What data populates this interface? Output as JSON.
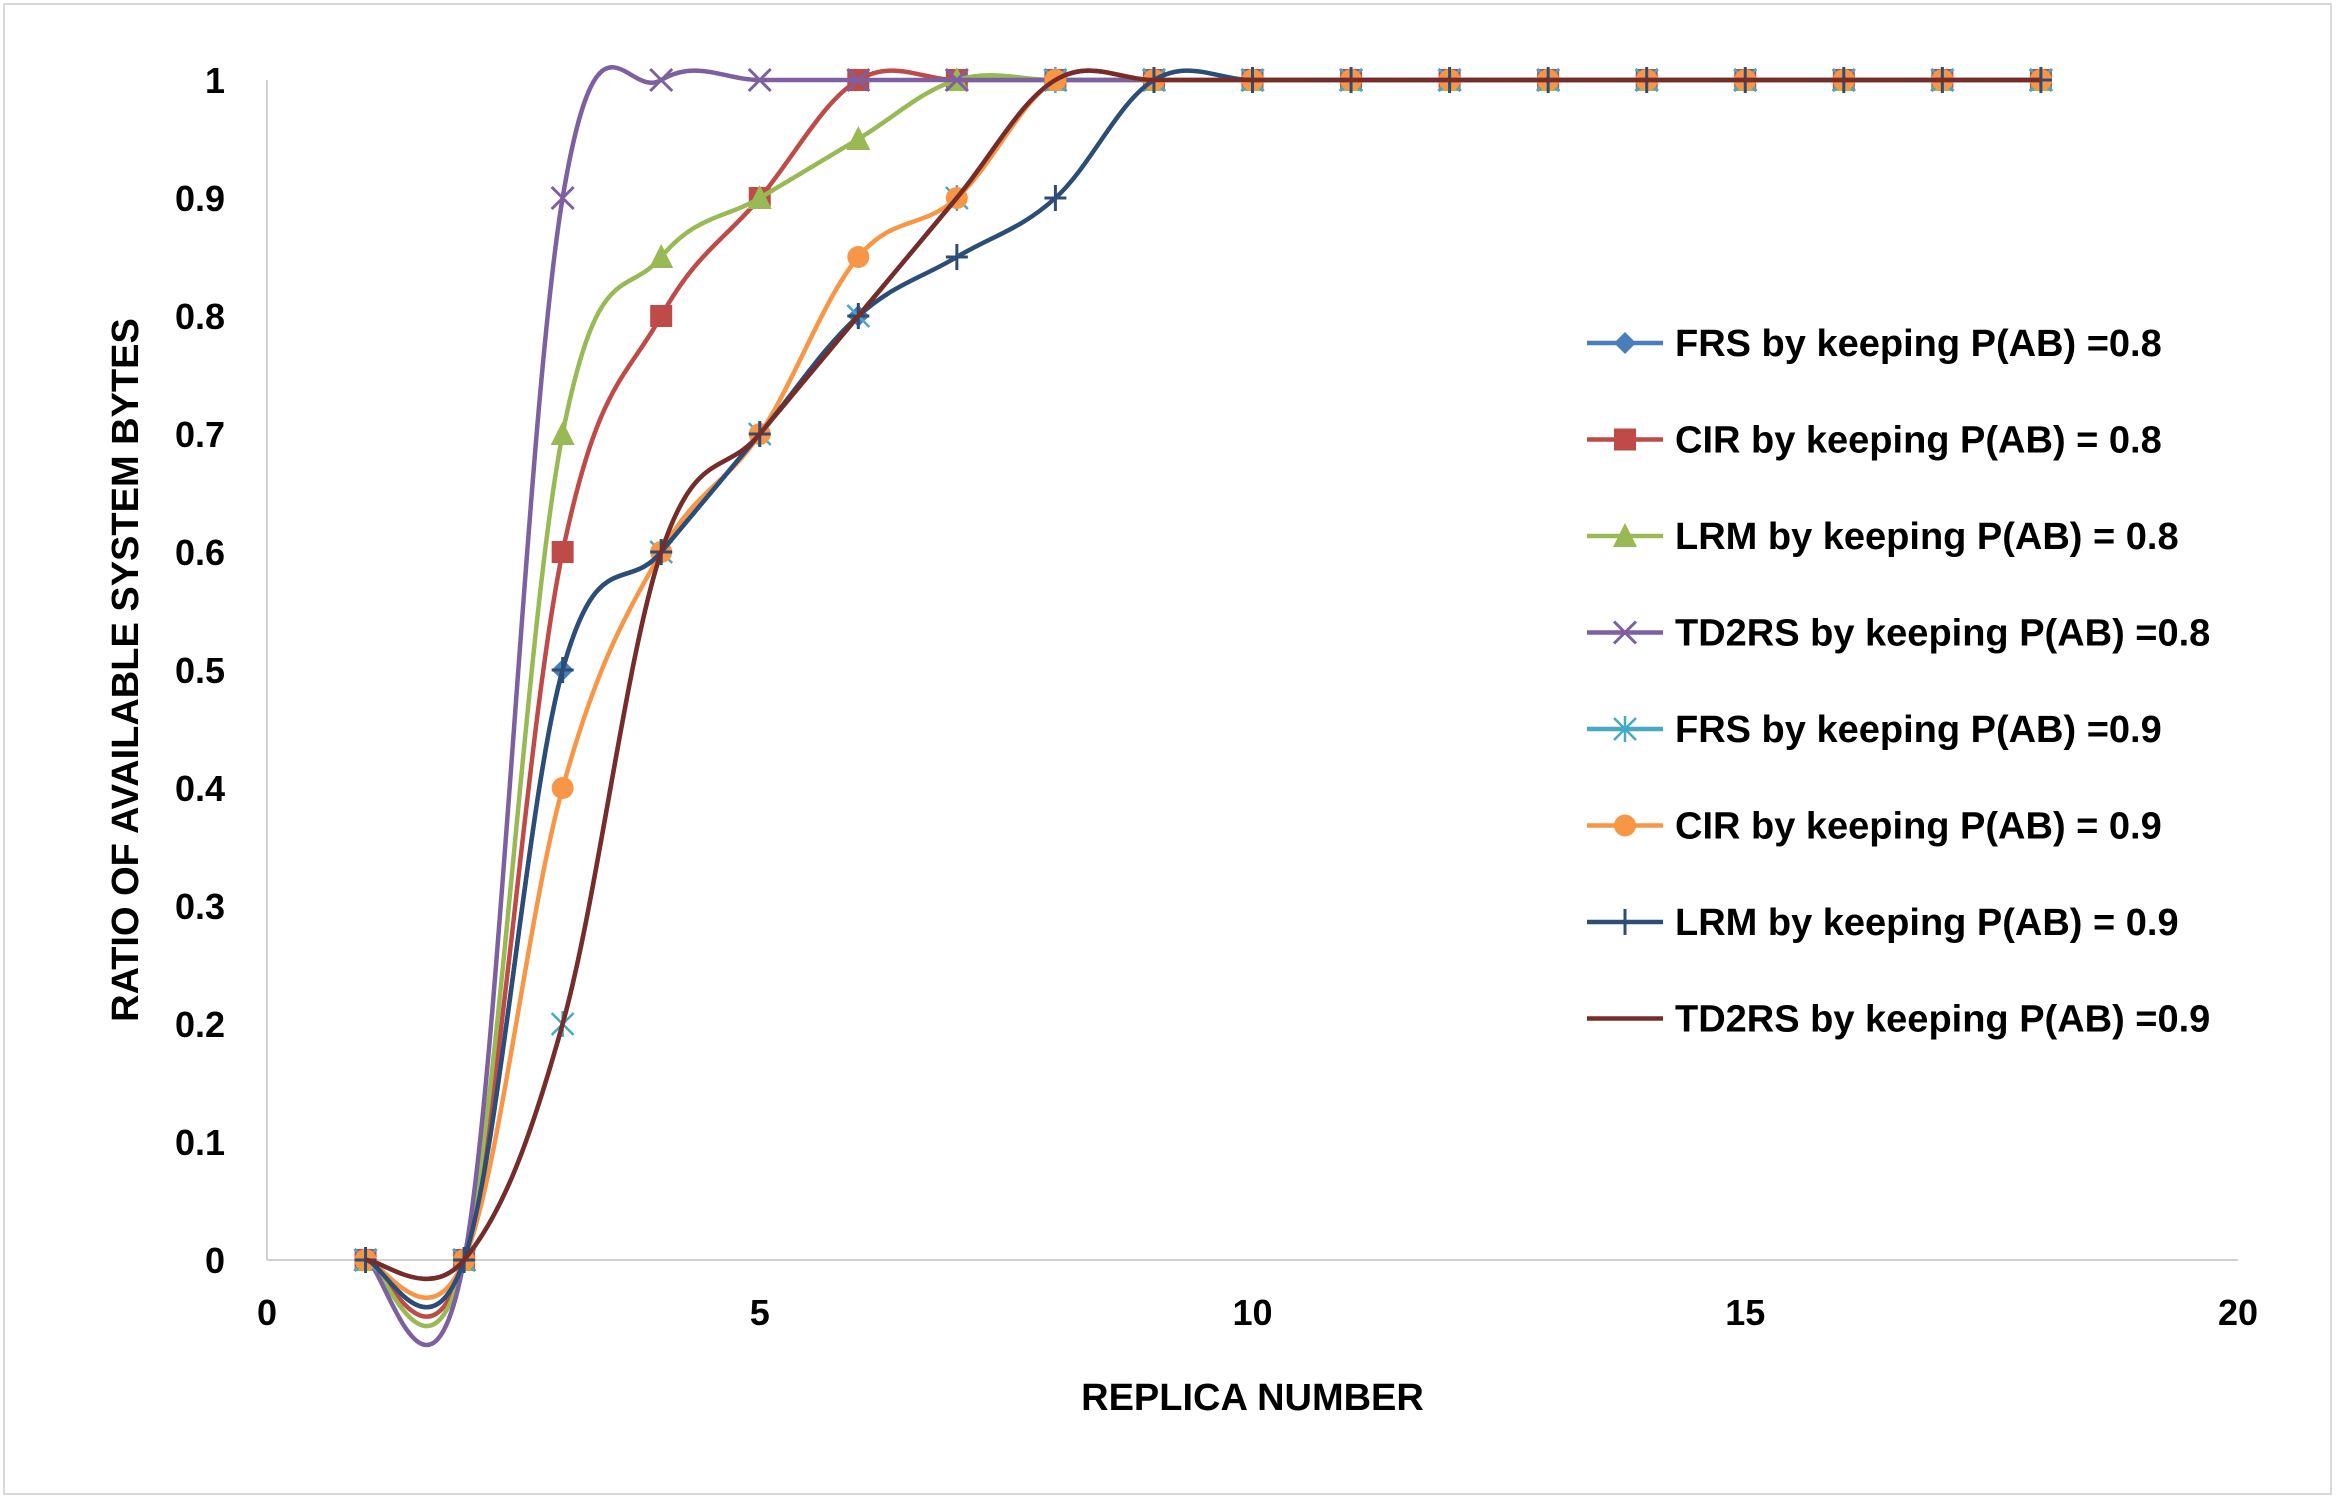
{
  "chart_data": {
    "type": "line",
    "title": "",
    "xlabel": "REPLICA NUMBER",
    "ylabel": "RATIO OF AVAILABLE SYSTEM BYTES",
    "xlim": [
      0,
      20
    ],
    "ylim": [
      0,
      1
    ],
    "xticks": [
      0,
      5,
      10,
      15,
      20
    ],
    "yticks": [
      0,
      0.1,
      0.2,
      0.3,
      0.4,
      0.5,
      0.6,
      0.7,
      0.8,
      0.9,
      1
    ],
    "grid": false,
    "legend_position": "right",
    "series": [
      {
        "name": "FRS by keeping P(AB) =0.8",
        "color": "#4a7ebb",
        "marker": "diamond",
        "x": [
          1,
          2,
          3,
          4,
          5,
          6,
          7,
          8,
          9,
          10,
          11,
          12,
          13,
          14,
          15,
          16,
          17,
          18
        ],
        "y": [
          0,
          0,
          0.5,
          0.6,
          0.7,
          0.8,
          0.9,
          1,
          1,
          1,
          1,
          1,
          1,
          1,
          1,
          1,
          1,
          1
        ]
      },
      {
        "name": "CIR by keeping P(AB) = 0.8",
        "color": "#be4b48",
        "marker": "square",
        "x": [
          1,
          2,
          3,
          4,
          5,
          6,
          7,
          8,
          9,
          10,
          11,
          12,
          13,
          14,
          15,
          16,
          17,
          18
        ],
        "y": [
          0,
          0,
          0.6,
          0.8,
          0.9,
          1,
          1,
          1,
          1,
          1,
          1,
          1,
          1,
          1,
          1,
          1,
          1,
          1
        ]
      },
      {
        "name": "LRM by keeping P(AB) = 0.8",
        "color": "#98b954",
        "marker": "triangle",
        "x": [
          1,
          2,
          3,
          4,
          5,
          6,
          7,
          8,
          9,
          10,
          11,
          12,
          13,
          14,
          15,
          16,
          17,
          18
        ],
        "y": [
          0,
          0,
          0.7,
          0.85,
          0.9,
          0.95,
          1,
          1,
          1,
          1,
          1,
          1,
          1,
          1,
          1,
          1,
          1,
          1
        ]
      },
      {
        "name": "TD2RS by keeping P(AB) =0.8",
        "color": "#7d60a0",
        "marker": "x",
        "x": [
          1,
          2,
          3,
          4,
          5,
          6,
          7,
          8,
          9,
          10,
          11,
          12,
          13,
          14,
          15,
          16,
          17,
          18
        ],
        "y": [
          0,
          0,
          0.9,
          1,
          1,
          1,
          1,
          1,
          1,
          1,
          1,
          1,
          1,
          1,
          1,
          1,
          1,
          1
        ]
      },
      {
        "name": "FRS by keeping P(AB) =0.9",
        "color": "#46aac5",
        "marker": "star",
        "x": [
          1,
          2,
          3,
          4,
          5,
          6,
          7,
          8,
          9,
          10,
          11,
          12,
          13,
          14,
          15,
          16,
          17,
          18
        ],
        "y": [
          0,
          0,
          0.2,
          0.6,
          0.7,
          0.8,
          0.9,
          1,
          1,
          1,
          1,
          1,
          1,
          1,
          1,
          1,
          1,
          1
        ]
      },
      {
        "name": "CIR by keeping P(AB) = 0.9",
        "color": "#f79646",
        "marker": "circle",
        "x": [
          1,
          2,
          3,
          4,
          5,
          6,
          7,
          8,
          9,
          10,
          11,
          12,
          13,
          14,
          15,
          16,
          17,
          18
        ],
        "y": [
          0,
          0,
          0.4,
          0.6,
          0.7,
          0.85,
          0.9,
          1,
          1,
          1,
          1,
          1,
          1,
          1,
          1,
          1,
          1,
          1
        ]
      },
      {
        "name": "LRM by keeping P(AB) = 0.9",
        "color": "#2c4d75",
        "marker": "plus",
        "x": [
          1,
          2,
          3,
          4,
          5,
          6,
          7,
          8,
          9,
          10,
          11,
          12,
          13,
          14,
          15,
          16,
          17,
          18
        ],
        "y": [
          0,
          0,
          0.5,
          0.6,
          0.7,
          0.8,
          0.85,
          0.9,
          1,
          1,
          1,
          1,
          1,
          1,
          1,
          1,
          1,
          1
        ]
      },
      {
        "name": "TD2RS by keeping P(AB) =0.9",
        "color": "#772c2a",
        "marker": "none",
        "x": [
          1,
          2,
          3,
          4,
          5,
          6,
          7,
          8,
          9,
          10,
          11,
          12,
          13,
          14,
          15,
          16,
          17,
          18
        ],
        "y": [
          0,
          0,
          0.2,
          0.6,
          0.7,
          0.8,
          0.9,
          1,
          1,
          1,
          1,
          1,
          1,
          1,
          1,
          1,
          1,
          1
        ]
      }
    ]
  }
}
